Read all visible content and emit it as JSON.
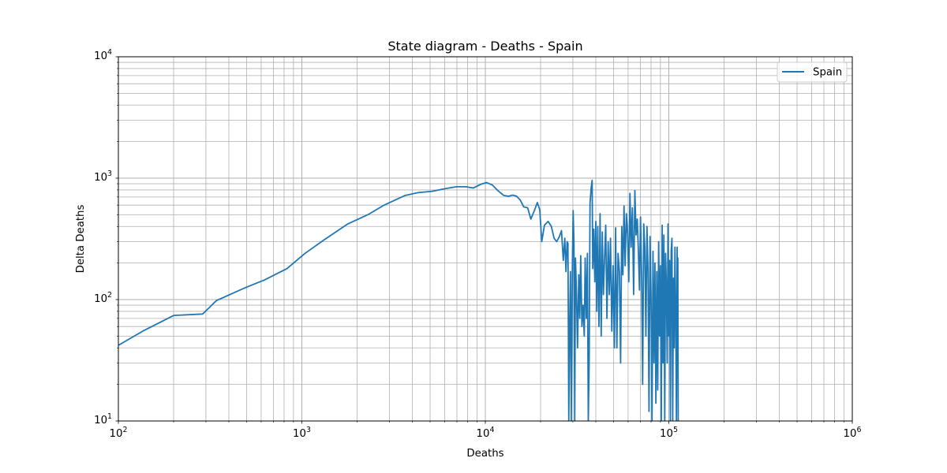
{
  "chart_data": {
    "type": "line",
    "title": "State diagram - Deaths - Spain",
    "xlabel": "Deaths",
    "ylabel": "Delta Deaths",
    "xscale": "log",
    "yscale": "log",
    "xlim": [
      100,
      1000000
    ],
    "ylim": [
      10,
      10000
    ],
    "x_ticks": [
      {
        "base": "10",
        "exp": "2"
      },
      {
        "base": "10",
        "exp": "3"
      },
      {
        "base": "10",
        "exp": "4"
      },
      {
        "base": "10",
        "exp": "5"
      },
      {
        "base": "10",
        "exp": "6"
      }
    ],
    "y_ticks": [
      {
        "base": "10",
        "exp": "1"
      },
      {
        "base": "10",
        "exp": "2"
      },
      {
        "base": "10",
        "exp": "3"
      },
      {
        "base": "10",
        "exp": "4"
      }
    ],
    "grid": "major and minor",
    "legend_position": "upper right",
    "series": [
      {
        "name": "Spain",
        "color": "#1f77b4",
        "points": [
          [
            100,
            42
          ],
          [
            136,
            55
          ],
          [
            200,
            74
          ],
          [
            288,
            76
          ],
          [
            342,
            98
          ],
          [
            490,
            125
          ],
          [
            625,
            145
          ],
          [
            830,
            180
          ],
          [
            1040,
            240
          ],
          [
            1320,
            310
          ],
          [
            1780,
            420
          ],
          [
            2290,
            500
          ],
          [
            2810,
            600
          ],
          [
            3650,
            720
          ],
          [
            4290,
            760
          ],
          [
            5140,
            780
          ],
          [
            6050,
            820
          ],
          [
            6960,
            850
          ],
          [
            7840,
            850
          ],
          [
            8600,
            830
          ],
          [
            9440,
            890
          ],
          [
            10150,
            920
          ],
          [
            10900,
            880
          ],
          [
            11700,
            790
          ],
          [
            12600,
            720
          ],
          [
            13400,
            710
          ],
          [
            14100,
            725
          ],
          [
            14800,
            710
          ],
          [
            15500,
            660
          ],
          [
            16200,
            580
          ],
          [
            17000,
            570
          ],
          [
            17700,
            460
          ],
          [
            18500,
            540
          ],
          [
            19200,
            630
          ],
          [
            19800,
            550
          ],
          [
            20300,
            300
          ],
          [
            21000,
            410
          ],
          [
            22000,
            440
          ],
          [
            22900,
            400
          ],
          [
            23700,
            320
          ],
          [
            24500,
            300
          ],
          [
            25300,
            330
          ],
          [
            26000,
            370
          ],
          [
            26600,
            210
          ],
          [
            27100,
            320
          ],
          [
            27500,
            170
          ],
          [
            27900,
            300
          ],
          [
            28200,
            290
          ],
          [
            28500,
            10
          ],
          [
            28800,
            60
          ],
          [
            29100,
            170
          ],
          [
            29400,
            10
          ],
          [
            29800,
            180
          ],
          [
            30100,
            540
          ],
          [
            30400,
            300
          ],
          [
            30700,
            10
          ],
          [
            31000,
            220
          ],
          [
            31400,
            110
          ],
          [
            31800,
            40
          ],
          [
            32300,
            160
          ],
          [
            32700,
            70
          ],
          [
            33100,
            230
          ],
          [
            33600,
            60
          ],
          [
            34100,
            90
          ],
          [
            34600,
            50
          ],
          [
            35000,
            220
          ],
          [
            35500,
            70
          ],
          [
            36000,
            240
          ],
          [
            36400,
            10
          ],
          [
            36800,
            30
          ],
          [
            37200,
            620
          ],
          [
            37700,
            820
          ],
          [
            38200,
            960
          ],
          [
            38500,
            180
          ],
          [
            39000,
            380
          ],
          [
            39500,
            140
          ],
          [
            40000,
            440
          ],
          [
            40500,
            80
          ],
          [
            41000,
            400
          ],
          [
            41600,
            60
          ],
          [
            42200,
            510
          ],
          [
            42800,
            50
          ],
          [
            43400,
            360
          ],
          [
            44000,
            110
          ],
          [
            44700,
            230
          ],
          [
            45300,
            410
          ],
          [
            46000,
            70
          ],
          [
            46700,
            300
          ],
          [
            47400,
            110
          ],
          [
            48100,
            320
          ],
          [
            48900,
            55
          ],
          [
            49700,
            190
          ],
          [
            50500,
            40
          ],
          [
            51300,
            390
          ],
          [
            52100,
            40
          ],
          [
            52900,
            240
          ],
          [
            53800,
            170
          ],
          [
            54600,
            30
          ],
          [
            55400,
            400
          ],
          [
            56200,
            160
          ],
          [
            57000,
            590
          ],
          [
            57800,
            190
          ],
          [
            58700,
            510
          ],
          [
            59600,
            350
          ],
          [
            60500,
            140
          ],
          [
            61400,
            750
          ],
          [
            62300,
            270
          ],
          [
            63300,
            570
          ],
          [
            64300,
            110
          ],
          [
            65300,
            790
          ],
          [
            66300,
            340
          ],
          [
            67300,
            460
          ],
          [
            68200,
            260
          ],
          [
            69200,
            120
          ],
          [
            70100,
            480
          ],
          [
            71100,
            150
          ],
          [
            72000,
            20
          ],
          [
            73000,
            420
          ],
          [
            74000,
            270
          ],
          [
            75000,
            50
          ],
          [
            76000,
            400
          ],
          [
            77000,
            180
          ],
          [
            78000,
            12
          ],
          [
            79000,
            330
          ],
          [
            80000,
            110
          ],
          [
            81000,
            10
          ],
          [
            82000,
            250
          ],
          [
            83000,
            30
          ],
          [
            84000,
            200
          ],
          [
            85000,
            14
          ],
          [
            86000,
            170
          ],
          [
            87000,
            18
          ],
          [
            88000,
            300
          ],
          [
            89000,
            50
          ],
          [
            90000,
            190
          ],
          [
            91000,
            10
          ],
          [
            92000,
            410
          ],
          [
            93000,
            30
          ],
          [
            94000,
            340
          ],
          [
            95000,
            10
          ],
          [
            96000,
            240
          ],
          [
            97000,
            130
          ],
          [
            98000,
            30
          ],
          [
            99000,
            420
          ],
          [
            100000,
            50
          ],
          [
            101000,
            210
          ],
          [
            102000,
            10
          ],
          [
            103000,
            250
          ],
          [
            104000,
            320
          ],
          [
            105000,
            10
          ],
          [
            106000,
            150
          ],
          [
            107000,
            40
          ],
          [
            108000,
            270
          ],
          [
            109000,
            80
          ],
          [
            110000,
            10
          ],
          [
            111000,
            270
          ],
          [
            111500,
            60
          ],
          [
            112000,
            220
          ],
          [
            112500,
            10
          ]
        ]
      }
    ]
  }
}
